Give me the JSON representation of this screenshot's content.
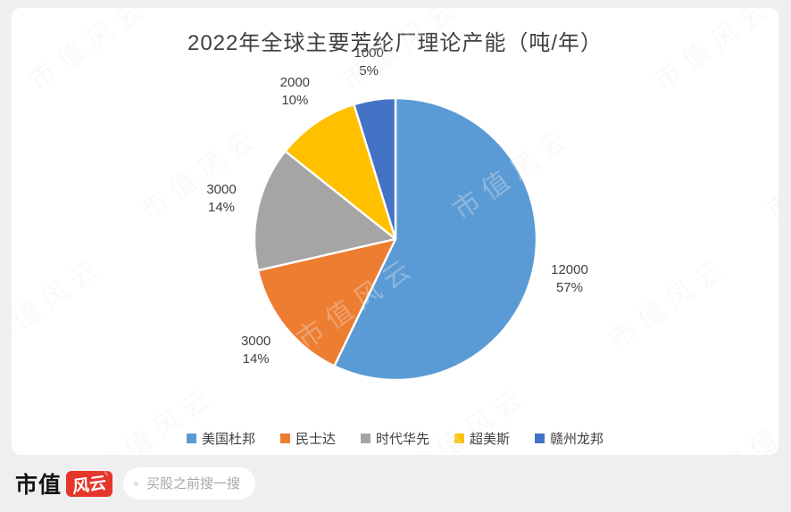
{
  "chart_data": {
    "type": "pie",
    "title": "2022年全球主要芳纶厂理论产能（吨/年）",
    "categories": [
      "美国杜邦",
      "民士达",
      "时代华先",
      "超美斯",
      "赣州龙邦"
    ],
    "values": [
      12000,
      3000,
      3000,
      2000,
      1000
    ],
    "value_labels": [
      "12000",
      "3000",
      "3000",
      "2000",
      "1000"
    ],
    "percent_labels": [
      "57%",
      "14%",
      "14%",
      "10%",
      "5%"
    ],
    "colors": [
      "#5B9BD5",
      "#ED7D31",
      "#A5A5A5",
      "#FFC000",
      "#4472C4"
    ],
    "start_angle_deg": 0,
    "direction": "clockwise",
    "legend_position": "bottom",
    "slice_border_color": "#ffffff"
  },
  "watermark": {
    "text": "市值风云"
  },
  "footer": {
    "logo_text": "市值",
    "logo_badge_text": "风云",
    "search_placeholder": "买股之前搜一搜"
  }
}
